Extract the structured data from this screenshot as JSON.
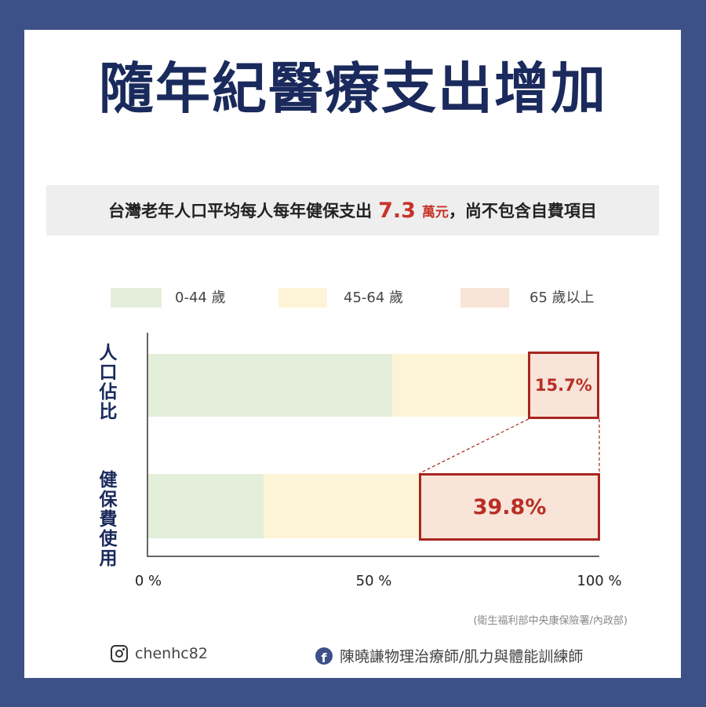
{
  "title": "隨年紀醫療支出增加",
  "subtitle": {
    "prefix": "台灣老年人口平均每人每年健保支出",
    "value": "7.3",
    "unit": "萬元",
    "suffix": "，尚不包含自費項目"
  },
  "chart_data": {
    "type": "bar",
    "orientation": "horizontal",
    "stacked": true,
    "percent_scale": true,
    "categories": [
      "人口佔比",
      "健保費使用"
    ],
    "series": [
      {
        "name": "0-44 歲",
        "color": "#e3efdb",
        "values": [
          54.0,
          25.6
        ]
      },
      {
        "name": "45-64 歲",
        "color": "#fdf3d6",
        "values": [
          30.3,
          34.6
        ]
      },
      {
        "name": "65 歲以上",
        "color": "#f8e4d8",
        "values": [
          15.7,
          39.8
        ]
      }
    ],
    "xlim": [
      0,
      100
    ],
    "xticks": [
      "0 %",
      "50 %",
      "100 %"
    ],
    "data_labels": [
      "15.7%",
      "39.8%"
    ],
    "legend_position": "top",
    "grid": false
  },
  "source": "(衛生福利部中央康保險署/內政部)",
  "footer": {
    "instagram": "chenhc82",
    "facebook": "陳曉謙物理治療師/肌力與體能訓練師"
  },
  "colors": {
    "background": "#3d5088",
    "title": "#1a2a5c",
    "highlight": "#c8332b"
  }
}
